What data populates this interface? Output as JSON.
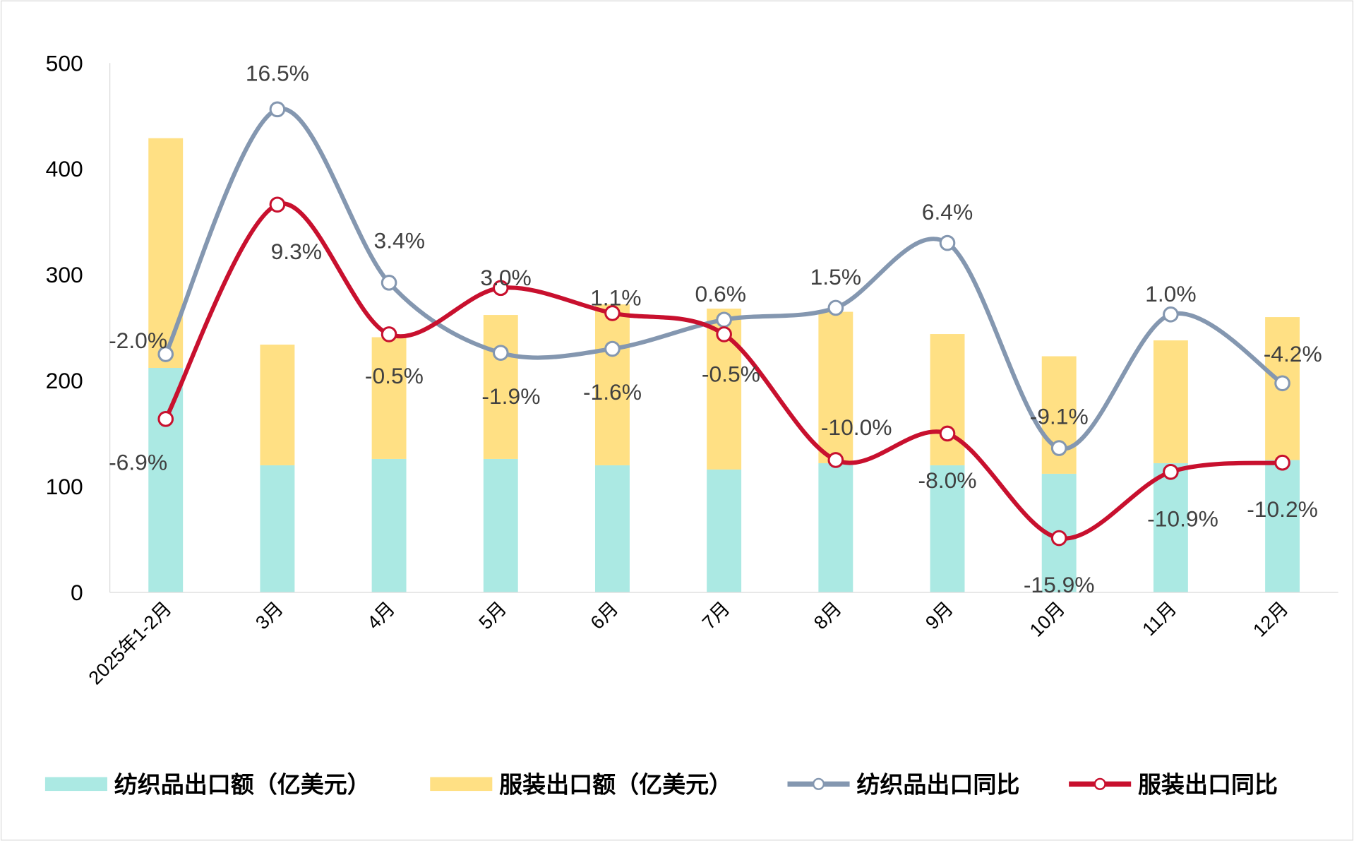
{
  "chart_data": {
    "type": "bar+line",
    "categories": [
      "2025年1-2月",
      "3月",
      "4月",
      "5月",
      "6月",
      "7月",
      "8月",
      "9月",
      "10月",
      "11月",
      "12月"
    ],
    "y_axis": {
      "min": 0,
      "max": 500,
      "ticks": [
        0,
        100,
        200,
        300,
        400,
        500
      ]
    },
    "secondary_axis": {
      "min": -20,
      "max": 20,
      "visible": false
    },
    "grid": false,
    "legend_position": "bottom",
    "series": [
      {
        "name": "纺织品出口额（亿美元）",
        "type": "stacked-bar",
        "color": "#ABE9E3",
        "values": [
          212,
          120,
          126,
          126,
          120,
          116,
          122,
          120,
          112,
          122,
          125
        ]
      },
      {
        "name": "服装出口额（亿美元）",
        "type": "stacked-bar",
        "color": "#FFE084",
        "values": [
          217,
          114,
          115,
          136,
          152,
          152,
          143,
          124,
          111,
          116,
          135
        ]
      },
      {
        "name": "纺织品出口同比",
        "type": "line",
        "axis": "secondary",
        "color": "#8497B0",
        "values": [
          -2.0,
          16.5,
          3.4,
          -1.9,
          -1.6,
          0.6,
          1.5,
          6.4,
          -9.1,
          1.0,
          -4.2
        ],
        "labels": [
          "-2.0%",
          "16.5%",
          "3.4%",
          "-1.9%",
          "-1.6%",
          "0.6%",
          "1.5%",
          "6.4%",
          "-9.1%",
          "1.0%",
          "-4.2%"
        ]
      },
      {
        "name": "服装出口同比",
        "type": "line",
        "axis": "secondary",
        "color": "#C8102E",
        "values": [
          -6.9,
          9.3,
          -0.5,
          3.0,
          1.1,
          -0.5,
          -10.0,
          -8.0,
          -15.9,
          -10.9,
          -10.2
        ],
        "labels": [
          "-6.9%",
          "9.3%",
          "-0.5%",
          "3.0%",
          "1.1%",
          "-0.5%",
          "-10.0%",
          "-8.0%",
          "-15.9%",
          "-10.9%",
          "-10.2%"
        ]
      }
    ]
  }
}
